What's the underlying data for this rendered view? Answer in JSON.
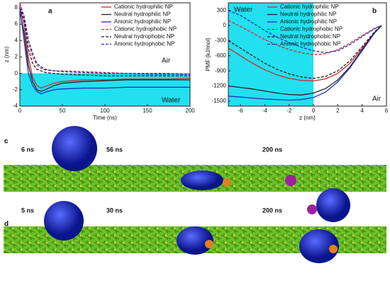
{
  "chart_data": [
    {
      "type": "line",
      "label": "a",
      "xlabel": "Time (ns)",
      "ylabel": "z (nm)",
      "xlim": [
        0,
        200
      ],
      "ylim": [
        -4,
        8.6
      ],
      "xticks": [
        0,
        50,
        100,
        150,
        200
      ],
      "yticks": [
        -4,
        -2,
        0,
        2,
        4,
        6,
        8
      ],
      "legend": "upper right",
      "annotations": [
        "Air",
        "Water"
      ],
      "x": [
        0,
        5,
        10,
        15,
        20,
        25,
        30,
        40,
        50,
        75,
        100,
        125,
        150,
        175,
        200
      ],
      "series": [
        {
          "name": "Cationic hydrophilic NP",
          "color": "#d62728",
          "dash": false,
          "values": [
            8,
            6,
            2,
            -0.5,
            -1.5,
            -1.8,
            -1.6,
            -1.2,
            -1.0,
            -0.8,
            -0.8,
            -0.7,
            -0.7,
            -0.7,
            -0.6
          ]
        },
        {
          "name": "Neutral hydrophilic NP",
          "color": "#222222",
          "dash": false,
          "values": [
            7.5,
            5,
            1,
            -1,
            -2,
            -2.2,
            -2,
            -1.5,
            -1.2,
            -1.0,
            -0.9,
            -0.8,
            -0.8,
            -0.8,
            -0.8
          ]
        },
        {
          "name": "Anionic hydrophilic NP",
          "color": "#1f2fbf",
          "dash": false,
          "values": [
            8,
            4,
            0,
            -1.5,
            -2.2,
            -2.5,
            -2.3,
            -2,
            -1.9,
            -1.8,
            -1.8,
            -1.7,
            -1.7,
            -1.7,
            -1.7
          ]
        },
        {
          "name": "Cationic hydrophobic NP",
          "color": "#d62728",
          "dash": true,
          "values": [
            8.5,
            7,
            4,
            2,
            1,
            0.6,
            0.4,
            0.3,
            0.3,
            0.2,
            0.1,
            0,
            0,
            0,
            -0.1
          ]
        },
        {
          "name": "Neutral hydrophobic NP",
          "color": "#222222",
          "dash": true,
          "values": [
            8,
            6.5,
            3,
            1.2,
            0.5,
            0.3,
            0.1,
            0,
            -0.1,
            -0.2,
            -0.3,
            -0.3,
            -0.3,
            -0.3,
            -0.3
          ]
        },
        {
          "name": "Anionic hydrophobic NP",
          "color": "#1f2fbf",
          "dash": true,
          "values": [
            8,
            7,
            4,
            2.5,
            1.2,
            0.8,
            0.5,
            0.3,
            0.2,
            0.1,
            0,
            0,
            -0.1,
            -0.1,
            -0.1
          ]
        }
      ]
    },
    {
      "type": "line",
      "label": "b",
      "xlabel": "z (nm)",
      "ylabel": "PMF (kJ/mol)",
      "xlim": [
        -7,
        6
      ],
      "ylim": [
        -1600,
        450
      ],
      "xticks": [
        -6,
        -4,
        -2,
        0,
        2,
        4,
        6
      ],
      "yticks": [
        300,
        0,
        -300,
        -600,
        -900,
        -1200,
        -1500
      ],
      "legend": "upper right",
      "annotations": [
        "Water",
        "Air"
      ],
      "x": [
        -7,
        -6,
        -5,
        -4,
        -3,
        -2,
        -1,
        0,
        1,
        2,
        3,
        4,
        5,
        5.6
      ],
      "series": [
        {
          "name": "Cationic hydrophilic NP",
          "color": "#d62728",
          "dash": false,
          "values": [
            -450,
            -600,
            -750,
            -880,
            -980,
            -1050,
            -1090,
            -1100,
            -1060,
            -950,
            -750,
            -450,
            -150,
            0
          ]
        },
        {
          "name": "Neutral hydrophilic NP",
          "color": "#222222",
          "dash": false,
          "values": [
            -1200,
            -1230,
            -1260,
            -1300,
            -1340,
            -1370,
            -1380,
            -1340,
            -1250,
            -1080,
            -820,
            -480,
            -150,
            0
          ]
        },
        {
          "name": "Anionic hydrophilic NP",
          "color": "#1f2fbf",
          "dash": false,
          "values": [
            -1400,
            -1420,
            -1440,
            -1460,
            -1470,
            -1480,
            -1470,
            -1430,
            -1320,
            -1120,
            -840,
            -500,
            -160,
            0
          ]
        },
        {
          "name": "Cationic hydrophobic NP",
          "color": "#d62728",
          "dash": true,
          "values": [
            100,
            -20,
            -150,
            -280,
            -390,
            -480,
            -540,
            -580,
            -560,
            -480,
            -350,
            -200,
            -60,
            0
          ]
        },
        {
          "name": "Neutral hydrophobic NP",
          "color": "#222222",
          "dash": true,
          "values": [
            -300,
            -450,
            -600,
            -750,
            -870,
            -960,
            -1020,
            -1050,
            -1010,
            -900,
            -700,
            -420,
            -130,
            0
          ]
        },
        {
          "name": "Anionic hydrophobic NP",
          "color": "#1f2fbf",
          "dash": true,
          "values": [
            300,
            200,
            50,
            -100,
            -230,
            -340,
            -430,
            -500,
            -540,
            -500,
            -380,
            -220,
            -70,
            0
          ]
        }
      ]
    }
  ],
  "panels": [
    {
      "label": "c",
      "times": [
        "6 ns",
        "56 ns",
        "200 ns"
      ]
    },
    {
      "label": "d",
      "times": [
        "5 ns",
        "30 ns",
        "200 ns"
      ]
    }
  ]
}
